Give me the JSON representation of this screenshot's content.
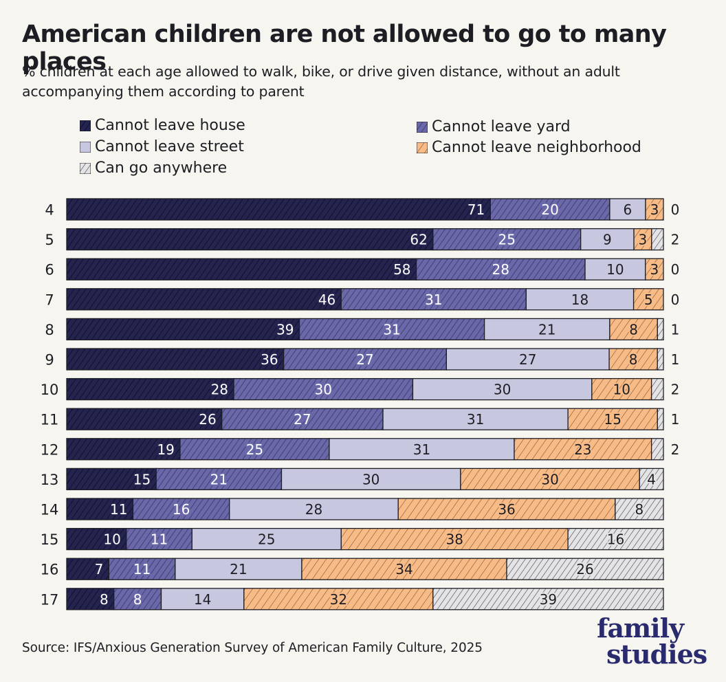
{
  "title": "American children are not allowed to go to many places",
  "subtitle": "% children at each age allowed to walk, bike, or drive given distance, without an adult accompanying them according to parent",
  "source": "Source: IFS/Anxious Generation Survey of American Family Culture, 2025",
  "logo": {
    "line1": "family",
    "line2": "studies"
  },
  "colors": {
    "house": "#24244f",
    "yard": "#6a68a8",
    "street": "#c7c8e0",
    "neighborhood": "#f7bb87",
    "anywhere": "#b9b9bd",
    "background": "#f7f5ef"
  },
  "legend": [
    {
      "key": "house",
      "label": "Cannot leave house"
    },
    {
      "key": "yard",
      "label": "Cannot leave yard"
    },
    {
      "key": "street",
      "label": "Cannot leave street"
    },
    {
      "key": "neighborhood",
      "label": "Cannot leave neighborhood"
    },
    {
      "key": "anywhere",
      "label": "Can go anywhere"
    }
  ],
  "chart_data": {
    "type": "bar",
    "orientation": "horizontal",
    "stacked": true,
    "title": "American children are not allowed to go to many places",
    "subtitle": "% children at each age allowed to walk, bike, or drive given distance, without an adult accompanying them according to parent",
    "categories": [
      "4",
      "5",
      "6",
      "7",
      "8",
      "9",
      "10",
      "11",
      "12",
      "13",
      "14",
      "15",
      "16",
      "17"
    ],
    "series": [
      {
        "name": "Cannot leave house",
        "key": "house",
        "values": [
          71,
          62,
          58,
          46,
          39,
          36,
          28,
          26,
          19,
          15,
          11,
          10,
          7,
          8
        ]
      },
      {
        "name": "Cannot leave yard",
        "key": "yard",
        "values": [
          20,
          25,
          28,
          31,
          31,
          27,
          30,
          27,
          25,
          21,
          16,
          11,
          11,
          8
        ]
      },
      {
        "name": "Cannot leave street",
        "key": "street",
        "values": [
          6,
          9,
          10,
          18,
          21,
          27,
          30,
          31,
          31,
          30,
          28,
          25,
          21,
          14
        ]
      },
      {
        "name": "Cannot leave neighborhood",
        "key": "neighborhood",
        "values": [
          3,
          3,
          3,
          5,
          8,
          8,
          10,
          15,
          23,
          30,
          36,
          38,
          34,
          32
        ]
      },
      {
        "name": "Can go anywhere",
        "key": "anywhere",
        "values": [
          0,
          2,
          0,
          0,
          1,
          1,
          2,
          1,
          2,
          4,
          8,
          16,
          26,
          39
        ]
      }
    ],
    "xlim": [
      0,
      100
    ],
    "legend_position": "top"
  }
}
